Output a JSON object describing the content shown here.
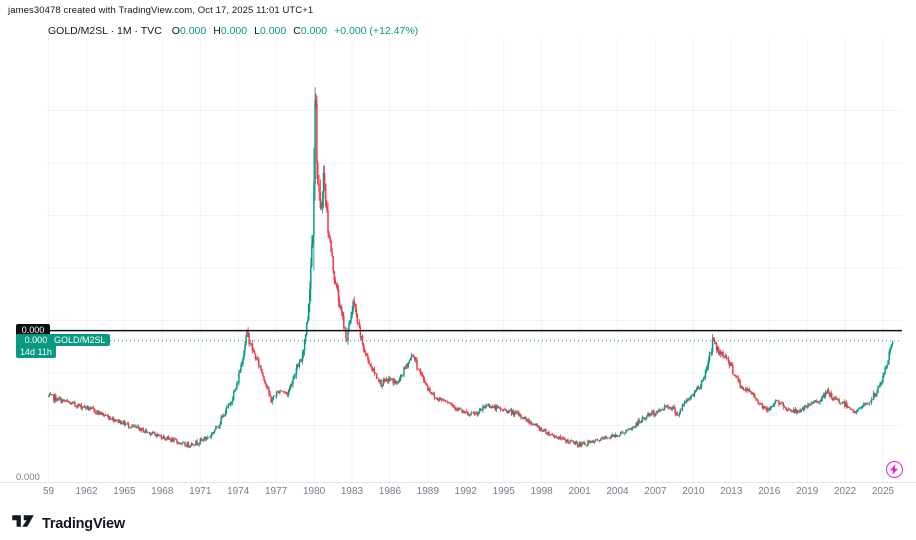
{
  "attribution": "james30478 created with TradingView.com, Oct 17, 2025 11:01 UTC+1",
  "legend": {
    "title": "GOLD/M2SL · 1M · TVC",
    "o_label": "O",
    "o_value": "0.000",
    "h_label": "H",
    "h_value": "0.000",
    "l_label": "L",
    "l_value": "0.000",
    "c_label": "C",
    "c_value": "0.000",
    "change": "+0.000 (+12.47%)"
  },
  "price_scale": {
    "hline_label": "0.000",
    "last_price_label": "0.000",
    "countdown": "14d 11h",
    "series_tag": "GOLD/M2SL",
    "bottom_label": "0.000"
  },
  "time_axis": {
    "labels": [
      "59",
      "1962",
      "1965",
      "1968",
      "1971",
      "1974",
      "1977",
      "1980",
      "1983",
      "1986",
      "1989",
      "1992",
      "1995",
      "1998",
      "2001",
      "2004",
      "2007",
      "2010",
      "2013",
      "2016",
      "2019",
      "2022",
      "2025"
    ]
  },
  "footer": {
    "brand": "TradingView"
  },
  "colors": {
    "up": "#089981",
    "down": "#f23645",
    "text_dark": "#131722",
    "text_muted": "#787b86",
    "hline": "#101010",
    "boost": "#e91ec9"
  },
  "chart_data": {
    "type": "candlestick",
    "title": "GOLD/M2SL monthly ratio, 1959-2025",
    "x_range": [
      1958.8,
      2026.5
    ],
    "ylim": [
      0,
      1
    ],
    "y_units": "normalized 0-1 of plot height; on-screen price labels all display as 0.000",
    "hline_level": 0.351,
    "last_price_level": 0.327,
    "change_percent": "+12.47%",
    "keypoints": [
      [
        1959,
        0.195
      ],
      [
        1960,
        0.185
      ],
      [
        1961,
        0.175
      ],
      [
        1962,
        0.168
      ],
      [
        1963,
        0.155
      ],
      [
        1964,
        0.142
      ],
      [
        1965,
        0.13
      ],
      [
        1966,
        0.118
      ],
      [
        1967,
        0.108
      ],
      [
        1968,
        0.098
      ],
      [
        1969,
        0.088
      ],
      [
        1969.8,
        0.078
      ],
      [
        1970.5,
        0.082
      ],
      [
        1971,
        0.088
      ],
      [
        1971.8,
        0.1
      ],
      [
        1972.5,
        0.13
      ],
      [
        1973.3,
        0.175
      ],
      [
        1973.9,
        0.22
      ],
      [
        1974.7,
        0.345
      ],
      [
        1975.2,
        0.3
      ],
      [
        1975.8,
        0.26
      ],
      [
        1976.6,
        0.185
      ],
      [
        1977.3,
        0.21
      ],
      [
        1977.9,
        0.2
      ],
      [
        1978.6,
        0.26
      ],
      [
        1979,
        0.28
      ],
      [
        1979.5,
        0.38
      ],
      [
        1979.9,
        0.6
      ],
      [
        1980.08,
        0.97
      ],
      [
        1980.3,
        0.7
      ],
      [
        1980.5,
        0.62
      ],
      [
        1980.75,
        0.72
      ],
      [
        1981.1,
        0.6
      ],
      [
        1981.6,
        0.48
      ],
      [
        1982.1,
        0.4
      ],
      [
        1982.6,
        0.33
      ],
      [
        1983.1,
        0.42
      ],
      [
        1983.5,
        0.36
      ],
      [
        1984,
        0.3
      ],
      [
        1984.6,
        0.26
      ],
      [
        1985.3,
        0.225
      ],
      [
        1986,
        0.235
      ],
      [
        1986.6,
        0.225
      ],
      [
        1987.2,
        0.26
      ],
      [
        1987.8,
        0.295
      ],
      [
        1988.4,
        0.25
      ],
      [
        1989,
        0.215
      ],
      [
        1989.6,
        0.19
      ],
      [
        1990.5,
        0.185
      ],
      [
        1991.3,
        0.165
      ],
      [
        1992.2,
        0.15
      ],
      [
        1993,
        0.155
      ],
      [
        1993.7,
        0.175
      ],
      [
        1994.5,
        0.165
      ],
      [
        1995.3,
        0.16
      ],
      [
        1996.2,
        0.15
      ],
      [
        1997,
        0.135
      ],
      [
        1998,
        0.115
      ],
      [
        1999,
        0.1
      ],
      [
        2000,
        0.088
      ],
      [
        2001,
        0.08
      ],
      [
        2002,
        0.085
      ],
      [
        2003,
        0.095
      ],
      [
        2004,
        0.103
      ],
      [
        2005,
        0.115
      ],
      [
        2005.8,
        0.135
      ],
      [
        2006.4,
        0.15
      ],
      [
        2007.2,
        0.158
      ],
      [
        2007.9,
        0.172
      ],
      [
        2008.4,
        0.165
      ],
      [
        2008.8,
        0.15
      ],
      [
        2009.3,
        0.178
      ],
      [
        2010,
        0.2
      ],
      [
        2010.8,
        0.235
      ],
      [
        2011.6,
        0.33
      ],
      [
        2012,
        0.3
      ],
      [
        2012.6,
        0.29
      ],
      [
        2013.2,
        0.25
      ],
      [
        2013.8,
        0.215
      ],
      [
        2014.5,
        0.205
      ],
      [
        2015.2,
        0.18
      ],
      [
        2015.9,
        0.16
      ],
      [
        2016.5,
        0.185
      ],
      [
        2017.2,
        0.168
      ],
      [
        2018,
        0.158
      ],
      [
        2018.8,
        0.165
      ],
      [
        2019.5,
        0.18
      ],
      [
        2020.2,
        0.19
      ],
      [
        2020.6,
        0.205
      ],
      [
        2021.2,
        0.185
      ],
      [
        2021.8,
        0.18
      ],
      [
        2022.3,
        0.17
      ],
      [
        2022.8,
        0.155
      ],
      [
        2023.4,
        0.172
      ],
      [
        2024,
        0.182
      ],
      [
        2024.6,
        0.21
      ],
      [
        2025,
        0.24
      ],
      [
        2025.4,
        0.28
      ],
      [
        2025.75,
        0.335
      ]
    ]
  }
}
